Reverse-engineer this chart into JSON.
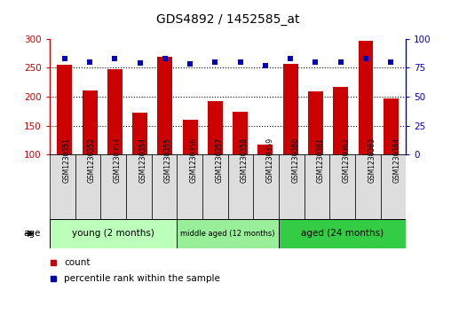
{
  "title": "GDS4892 / 1452585_at",
  "samples": [
    "GSM1230351",
    "GSM1230352",
    "GSM1230353",
    "GSM1230354",
    "GSM1230355",
    "GSM1230356",
    "GSM1230357",
    "GSM1230358",
    "GSM1230359",
    "GSM1230360",
    "GSM1230361",
    "GSM1230362",
    "GSM1230363",
    "GSM1230364"
  ],
  "counts": [
    255,
    210,
    247,
    172,
    268,
    160,
    192,
    174,
    117,
    257,
    209,
    216,
    297,
    197
  ],
  "percentiles": [
    83,
    80,
    83,
    79,
    83,
    78,
    80,
    80,
    77,
    83,
    80,
    80,
    83,
    80
  ],
  "ylim_left": [
    100,
    300
  ],
  "ylim_right": [
    0,
    100
  ],
  "yticks_left": [
    100,
    150,
    200,
    250,
    300
  ],
  "yticks_right": [
    0,
    25,
    50,
    75,
    100
  ],
  "bar_color": "#cc0000",
  "dot_color": "#0000bb",
  "grid_dotted_at": [
    150,
    200,
    250
  ],
  "groups": [
    {
      "label": "young (2 months)",
      "start": 0,
      "end": 5,
      "color": "#bbffbb"
    },
    {
      "label": "middle aged (12 months)",
      "start": 5,
      "end": 9,
      "color": "#99ee99"
    },
    {
      "label": "aged (24 months)",
      "start": 9,
      "end": 14,
      "color": "#33cc44"
    }
  ],
  "legend_count_label": "count",
  "legend_pct_label": "percentile rank within the sample",
  "age_label": "age",
  "cell_bg": "#dddddd",
  "plot_bg": "#ffffff"
}
